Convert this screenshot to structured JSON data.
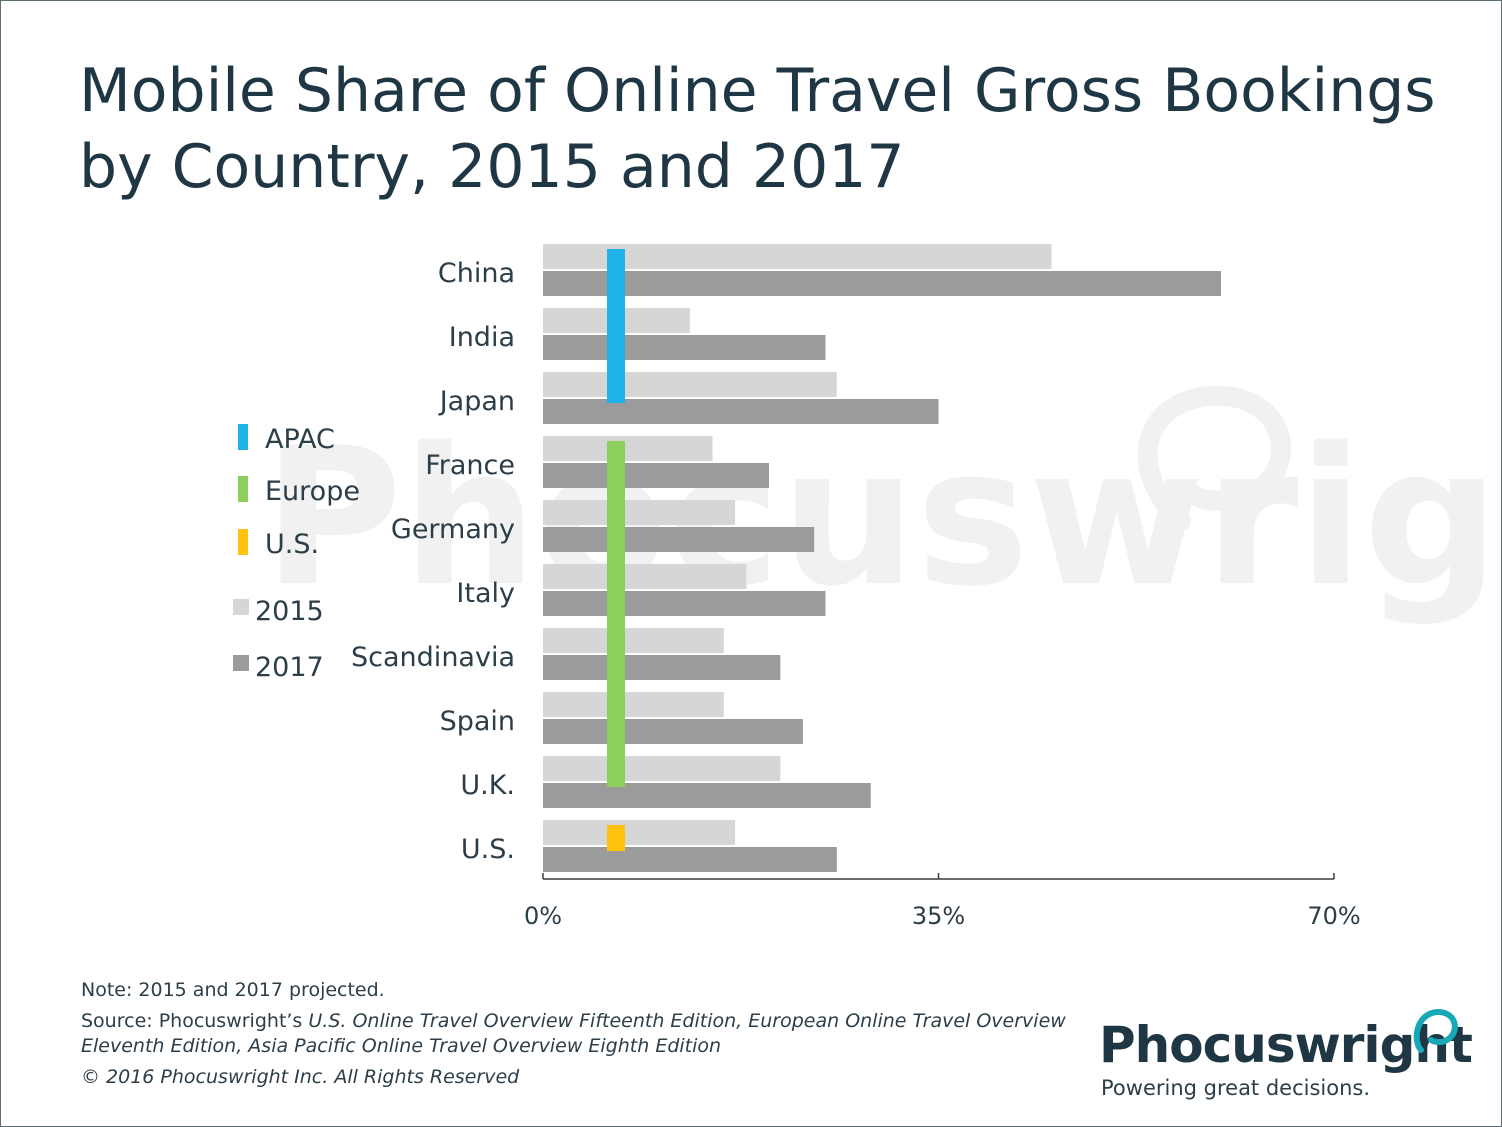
{
  "title_line1": "Mobile Share of Online Travel Gross Bookings",
  "title_line2": "by Country, 2015 and 2017",
  "watermark": "Phocuswright",
  "chart_data": {
    "type": "bar",
    "orientation": "horizontal",
    "categories": [
      "China",
      "India",
      "Japan",
      "France",
      "Germany",
      "Italy",
      "Scandinavia",
      "Spain",
      "U.K.",
      "U.S."
    ],
    "series": [
      {
        "name": "2015",
        "color": "#d6d6d6",
        "values": [
          45,
          13,
          26,
          15,
          17,
          18,
          16,
          16,
          21,
          17
        ]
      },
      {
        "name": "2017",
        "color": "#9b9b9b",
        "values": [
          60,
          25,
          35,
          20,
          24,
          25,
          21,
          23,
          29,
          26
        ]
      }
    ],
    "regions": [
      {
        "name": "APAC",
        "color": "#1fb3e8",
        "categories": [
          "China",
          "India",
          "Japan"
        ]
      },
      {
        "name": "Europe",
        "color": "#8ccf5b",
        "categories": [
          "France",
          "Germany",
          "Italy",
          "Scandinavia",
          "Spain",
          "U.K."
        ]
      },
      {
        "name": "U.S.",
        "color": "#ffc20e",
        "categories": [
          "U.S."
        ]
      }
    ],
    "xlim": [
      0,
      70
    ],
    "ticks": [
      "0%",
      "35%",
      "70%"
    ],
    "tick_values": [
      0,
      35,
      70
    ],
    "legend_regions": [
      "APAC",
      "Europe",
      "U.S."
    ],
    "legend_years": [
      "2015",
      "2017"
    ],
    "legend_placement": "left",
    "grid": false
  },
  "footer": {
    "note": "Note: 2015 and 2017 projected.",
    "source_prefix": "Source: Phocuswright’s ",
    "source_italic_1": "U.S. Online Travel Overview Fifteenth Edition, European Online Travel Overview",
    "source_italic_2": "Eleventh Edition, Asia Pacific Online Travel Overview Eighth Edition",
    "copyright": "© 2016 Phocuswright Inc. All Rights Reserved"
  },
  "logo": {
    "name": "Phocuswright",
    "tagline": "Powering great decisions.",
    "accent": "#17a9b8"
  }
}
